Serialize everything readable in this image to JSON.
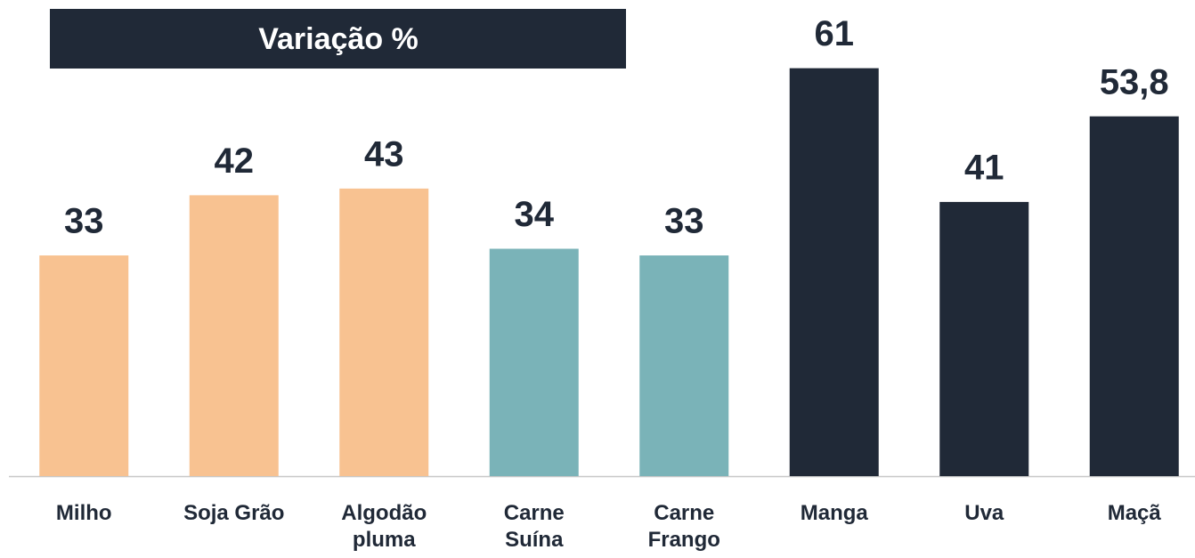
{
  "chart_data": {
    "type": "bar",
    "title": "Variação %",
    "categories": [
      "Milho",
      "Soja Grão",
      "Algodão\npluma",
      "Carne\nSuína",
      "Carne\nFrango",
      "Manga",
      "Uva",
      "Maçã"
    ],
    "values": [
      33,
      42,
      43,
      34,
      33,
      61,
      41,
      53.8
    ],
    "value_labels": [
      "33",
      "42",
      "43",
      "34",
      "33",
      "61",
      "41",
      "53,8"
    ],
    "colors": [
      "#f8c291",
      "#f8c291",
      "#f8c291",
      "#7ab3b8",
      "#7ab3b8",
      "#202937",
      "#202937",
      "#202937"
    ],
    "ylim": [
      0,
      70
    ]
  }
}
